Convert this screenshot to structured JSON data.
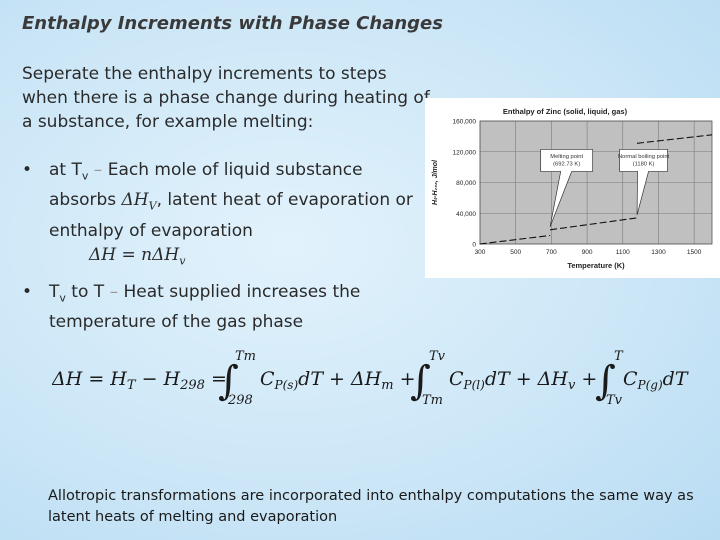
{
  "title": "Enthalpy Increments with Phase Changes",
  "intro": "Seperate the enthalpy increments to steps when there is a phase change during heating of a substance, for example melting:",
  "bullets": [
    {
      "symbol": "•",
      "lead": "at T",
      "lead_sub": "v",
      "dash": " – ",
      "text_a": "Each mole of liquid substance absorbs ",
      "sym": "ΔH",
      "sym_sub": "V",
      "text_b": ", latent heat of evaporation or enthalpy of evaporation",
      "formula": "ΔH = nΔH",
      "formula_sub": "v"
    },
    {
      "symbol": "•",
      "lead": "T",
      "lead_sub": "v",
      "mid": " to T",
      "dash": " – ",
      "text": "Heat supplied increases the temperature of the gas phase"
    }
  ],
  "equation": {
    "lhs": "ΔH = H",
    "lhs_sub": "T",
    "minus": " − H",
    "minus_sub": "298",
    "eq": " =",
    "int1_upper": "Tm",
    "int1_lower": "298",
    "int1_body": "C",
    "int1_body_sub": "P(s)",
    "int1_d": "dT + ΔH",
    "int1_d_sub": "m",
    "plus1": " +",
    "int2_upper": "Tv",
    "int2_lower": "Tm",
    "int2_body": "C",
    "int2_body_sub": "P(l)",
    "int2_d": "dT + ΔH",
    "int2_d_sub": "v",
    "plus2": " +",
    "int3_upper": "T",
    "int3_lower": "Tv",
    "int3_body": "C",
    "int3_body_sub": "P(g)",
    "int3_d": "dT"
  },
  "footer": "Allotropic transformations are incorporated into enthalpy computations the same way as latent heats of melting and evaporation",
  "chart_data": {
    "type": "line",
    "title": "Enthalpy of Zinc (solid, liquid, gas)",
    "xlabel": "Temperature (K)",
    "ylabel": "Hₜ-H₂₉₈, J/mol",
    "xlim": [
      300,
      1600
    ],
    "ylim": [
      0,
      160000
    ],
    "x_ticks": [
      "300",
      "500",
      "700",
      "900",
      "1100",
      "1300",
      "1500"
    ],
    "y_ticks": [
      "0",
      "40,000",
      "80,000",
      "120,000",
      "160,000"
    ],
    "grid": true,
    "series": [
      {
        "x": [
          298,
          692.73
        ],
        "y": [
          0,
          11000
        ]
      },
      {
        "x": [
          692.73,
          1180
        ],
        "y": [
          18500,
          34000
        ]
      },
      {
        "x": [
          1180,
          1600
        ],
        "y": [
          131000,
          142000
        ]
      }
    ],
    "annotations": [
      {
        "label": "Melting point (692.73 K)",
        "x": 692.73,
        "y": 18500
      },
      {
        "label": "Normal boiling point (1180 K)",
        "x": 1180,
        "y": 34000
      }
    ],
    "colors": {
      "plot_bg": "#c0c0c0",
      "frame_bg": "#ffffff",
      "line": "#111111"
    }
  }
}
